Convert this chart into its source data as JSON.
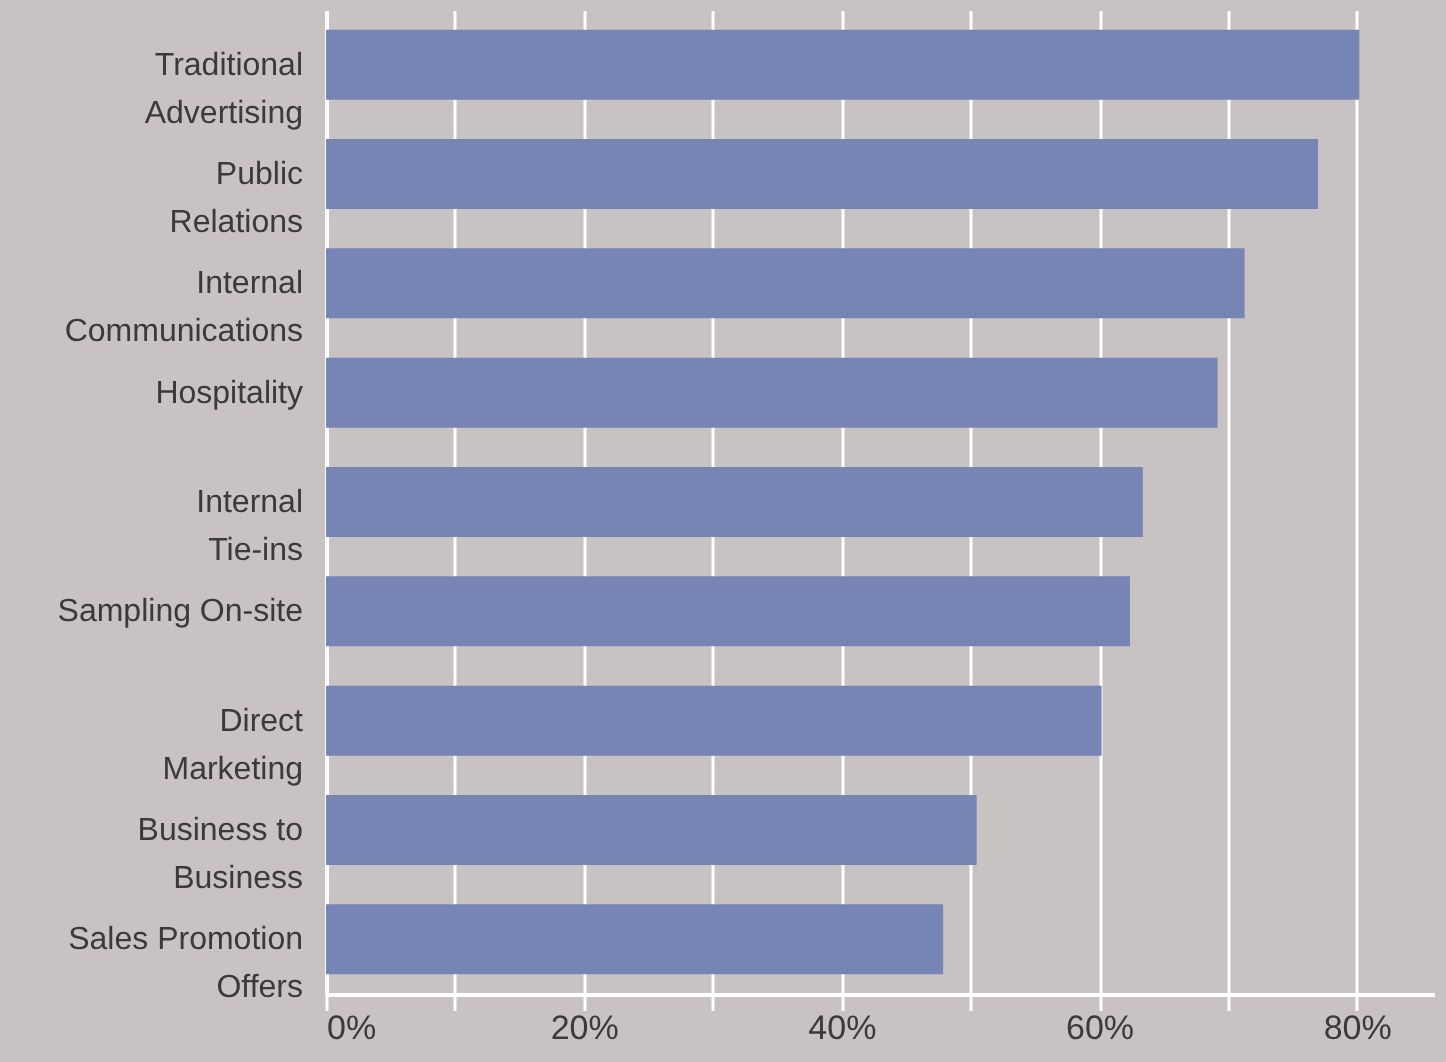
{
  "chart_data": {
    "type": "bar",
    "orientation": "horizontal",
    "categories": [
      "Traditional\nAdvertising",
      "Public\nRelations",
      "Internal\nCommunications",
      "Hospitality",
      "Internal\nTie-ins",
      "Sampling On-site",
      "Direct\nMarketing",
      "Business to\nBusiness",
      "Sales Promotion\nOffers"
    ],
    "values": [
      80.2,
      77,
      71.3,
      69.2,
      63.4,
      62.4,
      60.2,
      50.5,
      47.9
    ],
    "color": "#7685b3",
    "xlim": [
      0,
      86
    ],
    "xticks": [
      {
        "value": 0,
        "label": "0%"
      },
      {
        "value": 10,
        "label": null
      },
      {
        "value": 20,
        "label": "20%"
      },
      {
        "value": 30,
        "label": null
      },
      {
        "value": 40,
        "label": "40%"
      },
      {
        "value": 50,
        "label": null
      },
      {
        "value": 60,
        "label": "60%"
      },
      {
        "value": 70,
        "label": null
      },
      {
        "value": 80,
        "label": "80%"
      }
    ],
    "grid": "x"
  }
}
